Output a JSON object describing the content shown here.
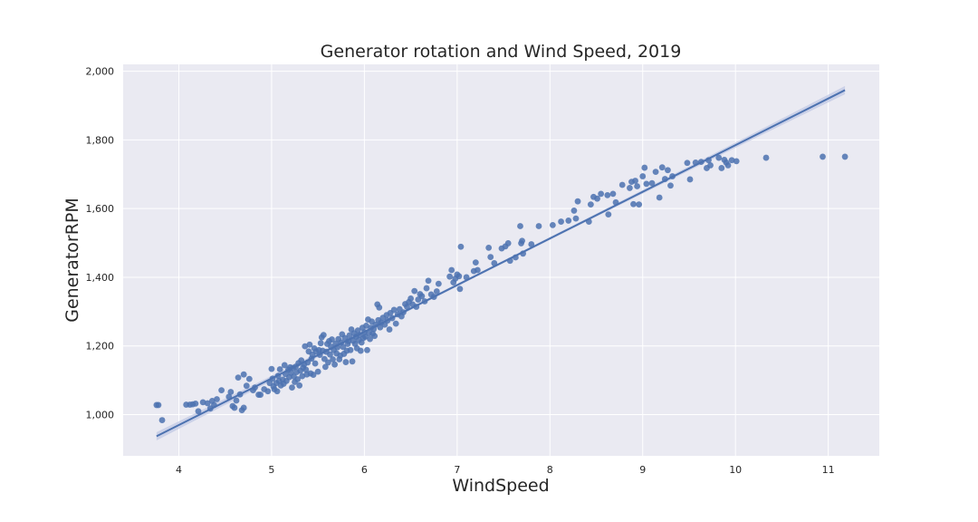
{
  "chart_data": {
    "type": "scatter",
    "title": "Generator rotation and Wind Speed, 2019",
    "xlabel": "WindSpeed",
    "ylabel": "GeneratorRPM",
    "xlim": [
      3.4,
      11.55
    ],
    "ylim": [
      880,
      2020
    ],
    "xticks": [
      4,
      5,
      6,
      7,
      8,
      9,
      10,
      11
    ],
    "yticks": [
      1000,
      1200,
      1400,
      1600,
      1800,
      2000
    ],
    "ytick_labels": [
      "1,000",
      "1,200",
      "1,400",
      "1,600",
      "1,800",
      "2,000"
    ],
    "grid": true,
    "colors": {
      "background": "#eaeaf2",
      "grid": "#ffffff",
      "points": "#4c72b0",
      "regression_line": "#4c72b0",
      "confidence_band": "#c0c8e4"
    },
    "regression": {
      "x": [
        3.76,
        11.18
      ],
      "y": [
        937,
        1945
      ],
      "ci_halfwidth_ends": 12,
      "ci_halfwidth_center": 4
    },
    "points": [
      [
        3.76,
        1028
      ],
      [
        3.78,
        1028
      ],
      [
        3.82,
        984
      ],
      [
        4.08,
        1029
      ],
      [
        4.12,
        1029
      ],
      [
        4.15,
        1030
      ],
      [
        4.18,
        1032
      ],
      [
        4.21,
        1010
      ],
      [
        4.26,
        1036
      ],
      [
        4.31,
        1033
      ],
      [
        4.34,
        1018
      ],
      [
        4.36,
        1040
      ],
      [
        4.38,
        1028
      ],
      [
        4.41,
        1045
      ],
      [
        4.46,
        1071
      ],
      [
        4.54,
        1052
      ],
      [
        4.56,
        1066
      ],
      [
        4.58,
        1025
      ],
      [
        4.6,
        1020
      ],
      [
        4.62,
        1041
      ],
      [
        4.64,
        1108
      ],
      [
        4.66,
        1059
      ],
      [
        4.68,
        1013
      ],
      [
        4.7,
        1020
      ],
      [
        4.7,
        1117
      ],
      [
        4.73,
        1084
      ],
      [
        4.76,
        1104
      ],
      [
        4.8,
        1071
      ],
      [
        4.82,
        1079
      ],
      [
        4.86,
        1058
      ],
      [
        4.88,
        1058
      ],
      [
        4.92,
        1074
      ],
      [
        4.96,
        1068
      ],
      [
        4.98,
        1092
      ],
      [
        5.0,
        1133
      ],
      [
        5.01,
        1105
      ],
      [
        5.02,
        1082
      ],
      [
        5.03,
        1074
      ],
      [
        5.05,
        1092
      ],
      [
        5.06,
        1068
      ],
      [
        5.07,
        1113
      ],
      [
        5.08,
        1098
      ],
      [
        5.09,
        1132
      ],
      [
        5.1,
        1085
      ],
      [
        5.12,
        1102
      ],
      [
        5.13,
        1090
      ],
      [
        5.14,
        1144
      ],
      [
        5.15,
        1118
      ],
      [
        5.16,
        1098
      ],
      [
        5.18,
        1131
      ],
      [
        5.19,
        1109
      ],
      [
        5.2,
        1138
      ],
      [
        5.21,
        1122
      ],
      [
        5.22,
        1079
      ],
      [
        5.23,
        1136
      ],
      [
        5.24,
        1111
      ],
      [
        5.25,
        1095
      ],
      [
        5.26,
        1140
      ],
      [
        5.27,
        1124
      ],
      [
        5.28,
        1103
      ],
      [
        5.29,
        1150
      ],
      [
        5.3,
        1085
      ],
      [
        5.31,
        1128
      ],
      [
        5.32,
        1158
      ],
      [
        5.33,
        1112
      ],
      [
        5.34,
        1137
      ],
      [
        5.35,
        1146
      ],
      [
        5.36,
        1199
      ],
      [
        5.37,
        1131
      ],
      [
        5.38,
        1117
      ],
      [
        5.39,
        1152
      ],
      [
        5.4,
        1184
      ],
      [
        5.41,
        1204
      ],
      [
        5.42,
        1120
      ],
      [
        5.43,
        1163
      ],
      [
        5.44,
        1175
      ],
      [
        5.45,
        1116
      ],
      [
        5.46,
        1193
      ],
      [
        5.47,
        1149
      ],
      [
        5.48,
        1184
      ],
      [
        5.5,
        1125
      ],
      [
        5.51,
        1188
      ],
      [
        5.52,
        1174
      ],
      [
        5.53,
        1208
      ],
      [
        5.54,
        1225
      ],
      [
        5.55,
        1186
      ],
      [
        5.56,
        1232
      ],
      [
        5.57,
        1162
      ],
      [
        5.58,
        1139
      ],
      [
        5.59,
        1183
      ],
      [
        5.6,
        1206
      ],
      [
        5.61,
        1152
      ],
      [
        5.62,
        1214
      ],
      [
        5.63,
        1175
      ],
      [
        5.64,
        1198
      ],
      [
        5.65,
        1219
      ],
      [
        5.66,
        1161
      ],
      [
        5.67,
        1188
      ],
      [
        5.68,
        1146
      ],
      [
        5.69,
        1207
      ],
      [
        5.7,
        1178
      ],
      [
        5.71,
        1196
      ],
      [
        5.72,
        1220
      ],
      [
        5.73,
        1161
      ],
      [
        5.74,
        1172
      ],
      [
        5.75,
        1210
      ],
      [
        5.76,
        1234
      ],
      [
        5.77,
        1197
      ],
      [
        5.78,
        1177
      ],
      [
        5.79,
        1223
      ],
      [
        5.8,
        1153
      ],
      [
        5.81,
        1186
      ],
      [
        5.82,
        1206
      ],
      [
        5.83,
        1214
      ],
      [
        5.84,
        1231
      ],
      [
        5.85,
        1188
      ],
      [
        5.86,
        1248
      ],
      [
        5.87,
        1155
      ],
      [
        5.88,
        1215
      ],
      [
        5.89,
        1237
      ],
      [
        5.9,
        1206
      ],
      [
        5.91,
        1227
      ],
      [
        5.92,
        1193
      ],
      [
        5.93,
        1245
      ],
      [
        5.94,
        1217
      ],
      [
        5.95,
        1232
      ],
      [
        5.96,
        1186
      ],
      [
        5.97,
        1210
      ],
      [
        5.98,
        1253
      ],
      [
        5.99,
        1223
      ],
      [
        6.0,
        1240
      ],
      [
        6.01,
        1227
      ],
      [
        6.02,
        1259
      ],
      [
        6.03,
        1188
      ],
      [
        6.04,
        1277
      ],
      [
        6.05,
        1237
      ],
      [
        6.06,
        1220
      ],
      [
        6.07,
        1253
      ],
      [
        6.08,
        1271
      ],
      [
        6.09,
        1236
      ],
      [
        6.1,
        1249
      ],
      [
        6.11,
        1229
      ],
      [
        6.12,
        1262
      ],
      [
        6.14,
        1321
      ],
      [
        6.15,
        1275
      ],
      [
        6.16,
        1312
      ],
      [
        6.17,
        1254
      ],
      [
        6.18,
        1268
      ],
      [
        6.2,
        1282
      ],
      [
        6.22,
        1262
      ],
      [
        6.24,
        1290
      ],
      [
        6.25,
        1274
      ],
      [
        6.27,
        1248
      ],
      [
        6.28,
        1296
      ],
      [
        6.3,
        1281
      ],
      [
        6.32,
        1305
      ],
      [
        6.34,
        1265
      ],
      [
        6.36,
        1292
      ],
      [
        6.38,
        1307
      ],
      [
        6.4,
        1286
      ],
      [
        6.42,
        1298
      ],
      [
        6.44,
        1322
      ],
      [
        6.46,
        1314
      ],
      [
        6.48,
        1328
      ],
      [
        6.5,
        1338
      ],
      [
        6.52,
        1321
      ],
      [
        6.54,
        1360
      ],
      [
        6.56,
        1314
      ],
      [
        6.58,
        1335
      ],
      [
        6.6,
        1351
      ],
      [
        6.62,
        1345
      ],
      [
        6.65,
        1330
      ],
      [
        6.67,
        1368
      ],
      [
        6.69,
        1390
      ],
      [
        6.72,
        1350
      ],
      [
        6.75,
        1343
      ],
      [
        6.78,
        1359
      ],
      [
        6.8,
        1381
      ],
      [
        6.92,
        1402
      ],
      [
        6.94,
        1421
      ],
      [
        6.96,
        1385
      ],
      [
        6.98,
        1396
      ],
      [
        7.0,
        1408
      ],
      [
        7.02,
        1403
      ],
      [
        7.03,
        1366
      ],
      [
        7.04,
        1489
      ],
      [
        7.1,
        1400
      ],
      [
        7.18,
        1418
      ],
      [
        7.2,
        1443
      ],
      [
        7.22,
        1421
      ],
      [
        7.34,
        1486
      ],
      [
        7.36,
        1459
      ],
      [
        7.4,
        1441
      ],
      [
        7.48,
        1484
      ],
      [
        7.52,
        1490
      ],
      [
        7.55,
        1499
      ],
      [
        7.57,
        1448
      ],
      [
        7.63,
        1458
      ],
      [
        7.68,
        1549
      ],
      [
        7.69,
        1499
      ],
      [
        7.7,
        1506
      ],
      [
        7.71,
        1469
      ],
      [
        7.8,
        1496
      ],
      [
        7.88,
        1549
      ],
      [
        8.03,
        1552
      ],
      [
        8.12,
        1562
      ],
      [
        8.2,
        1565
      ],
      [
        8.26,
        1594
      ],
      [
        8.28,
        1571
      ],
      [
        8.3,
        1621
      ],
      [
        8.42,
        1562
      ],
      [
        8.44,
        1612
      ],
      [
        8.47,
        1634
      ],
      [
        8.51,
        1629
      ],
      [
        8.55,
        1643
      ],
      [
        8.62,
        1639
      ],
      [
        8.63,
        1583
      ],
      [
        8.68,
        1643
      ],
      [
        8.71,
        1618
      ],
      [
        8.78,
        1669
      ],
      [
        8.86,
        1660
      ],
      [
        8.88,
        1678
      ],
      [
        8.9,
        1613
      ],
      [
        8.92,
        1681
      ],
      [
        8.94,
        1665
      ],
      [
        8.96,
        1612
      ],
      [
        9.0,
        1694
      ],
      [
        9.02,
        1719
      ],
      [
        9.04,
        1672
      ],
      [
        9.1,
        1674
      ],
      [
        9.14,
        1707
      ],
      [
        9.18,
        1632
      ],
      [
        9.21,
        1720
      ],
      [
        9.24,
        1686
      ],
      [
        9.27,
        1712
      ],
      [
        9.3,
        1667
      ],
      [
        9.32,
        1694
      ],
      [
        9.48,
        1733
      ],
      [
        9.51,
        1685
      ],
      [
        9.57,
        1734
      ],
      [
        9.63,
        1736
      ],
      [
        9.69,
        1718
      ],
      [
        9.71,
        1741
      ],
      [
        9.73,
        1726
      ],
      [
        9.82,
        1748
      ],
      [
        9.85,
        1718
      ],
      [
        9.88,
        1742
      ],
      [
        9.9,
        1734
      ],
      [
        9.92,
        1726
      ],
      [
        9.96,
        1741
      ],
      [
        10.01,
        1738
      ],
      [
        10.33,
        1748
      ],
      [
        10.94,
        1751
      ],
      [
        11.18,
        1751
      ]
    ]
  }
}
